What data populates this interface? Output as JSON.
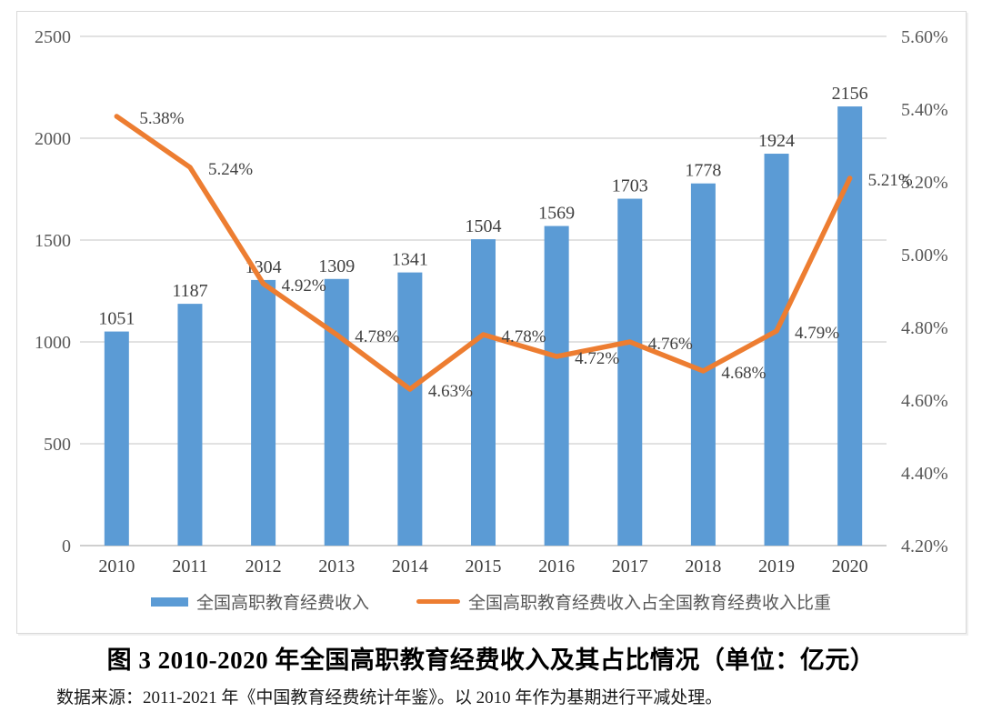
{
  "figure": {
    "title": "图 3 2010-2020 年全国高职教育经费收入及其占比情况（单位：亿元）",
    "source_note": "数据来源：2011-2021 年《中国教育经费统计年鉴》。以 2010 年作为基期进行平减处理。"
  },
  "colors": {
    "bar": "#5B9BD5",
    "line": "#ED7D31",
    "gridline": "#D9D9D9",
    "axis_line": "#BFBFBF",
    "frame_border": "#D9D9D9",
    "axis_text": "#595959",
    "category_text": "#404040",
    "data_label_text": "#404040"
  },
  "chart_data": {
    "type": "bar",
    "combo_with_line": true,
    "title": "图 3 2010-2020 年全国高职教育经费收入及其占比情况（单位：亿元）",
    "categories": [
      "2010",
      "2011",
      "2012",
      "2013",
      "2014",
      "2015",
      "2016",
      "2017",
      "2018",
      "2019",
      "2020"
    ],
    "series": [
      {
        "name": "全国高职教育经费收入",
        "type": "bar",
        "axis": "left",
        "color": "#5B9BD5",
        "values": [
          1051,
          1187,
          1304,
          1309,
          1341,
          1504,
          1569,
          1703,
          1778,
          1924,
          2156
        ],
        "data_labels": [
          "1051",
          "1187",
          "1304",
          "1309",
          "1341",
          "1504",
          "1569",
          "1703",
          "1778",
          "1924",
          "2156"
        ]
      },
      {
        "name": "全国高职教育经费收入占全国教育经费收入比重",
        "type": "line",
        "axis": "right",
        "color": "#ED7D31",
        "values": [
          5.38,
          5.24,
          4.92,
          4.78,
          4.63,
          4.78,
          4.72,
          4.76,
          4.68,
          4.79,
          5.21
        ],
        "data_labels": [
          "5.38%",
          "5.24%",
          "4.92%",
          "4.78%",
          "4.63%",
          "4.78%",
          "4.72%",
          "4.76%",
          "4.68%",
          "4.79%",
          "5.21%"
        ]
      }
    ],
    "left_axis": {
      "min": 0,
      "max": 2500,
      "step": 500,
      "tick_labels": [
        "0",
        "500",
        "1000",
        "1500",
        "2000",
        "2500"
      ]
    },
    "right_axis": {
      "min": 4.2,
      "max": 5.6,
      "step": 0.2,
      "tick_labels": [
        "4.20%",
        "4.40%",
        "4.60%",
        "4.80%",
        "5.00%",
        "5.20%",
        "5.40%",
        "5.60%"
      ]
    },
    "grid": {
      "horizontal": true,
      "vertical": false
    },
    "legend": {
      "position": "bottom",
      "items": [
        "全国高职教育经费收入",
        "全国高职教育经费收入占全国教育经费收入比重"
      ]
    },
    "xlabel": "",
    "ylabel": ""
  }
}
